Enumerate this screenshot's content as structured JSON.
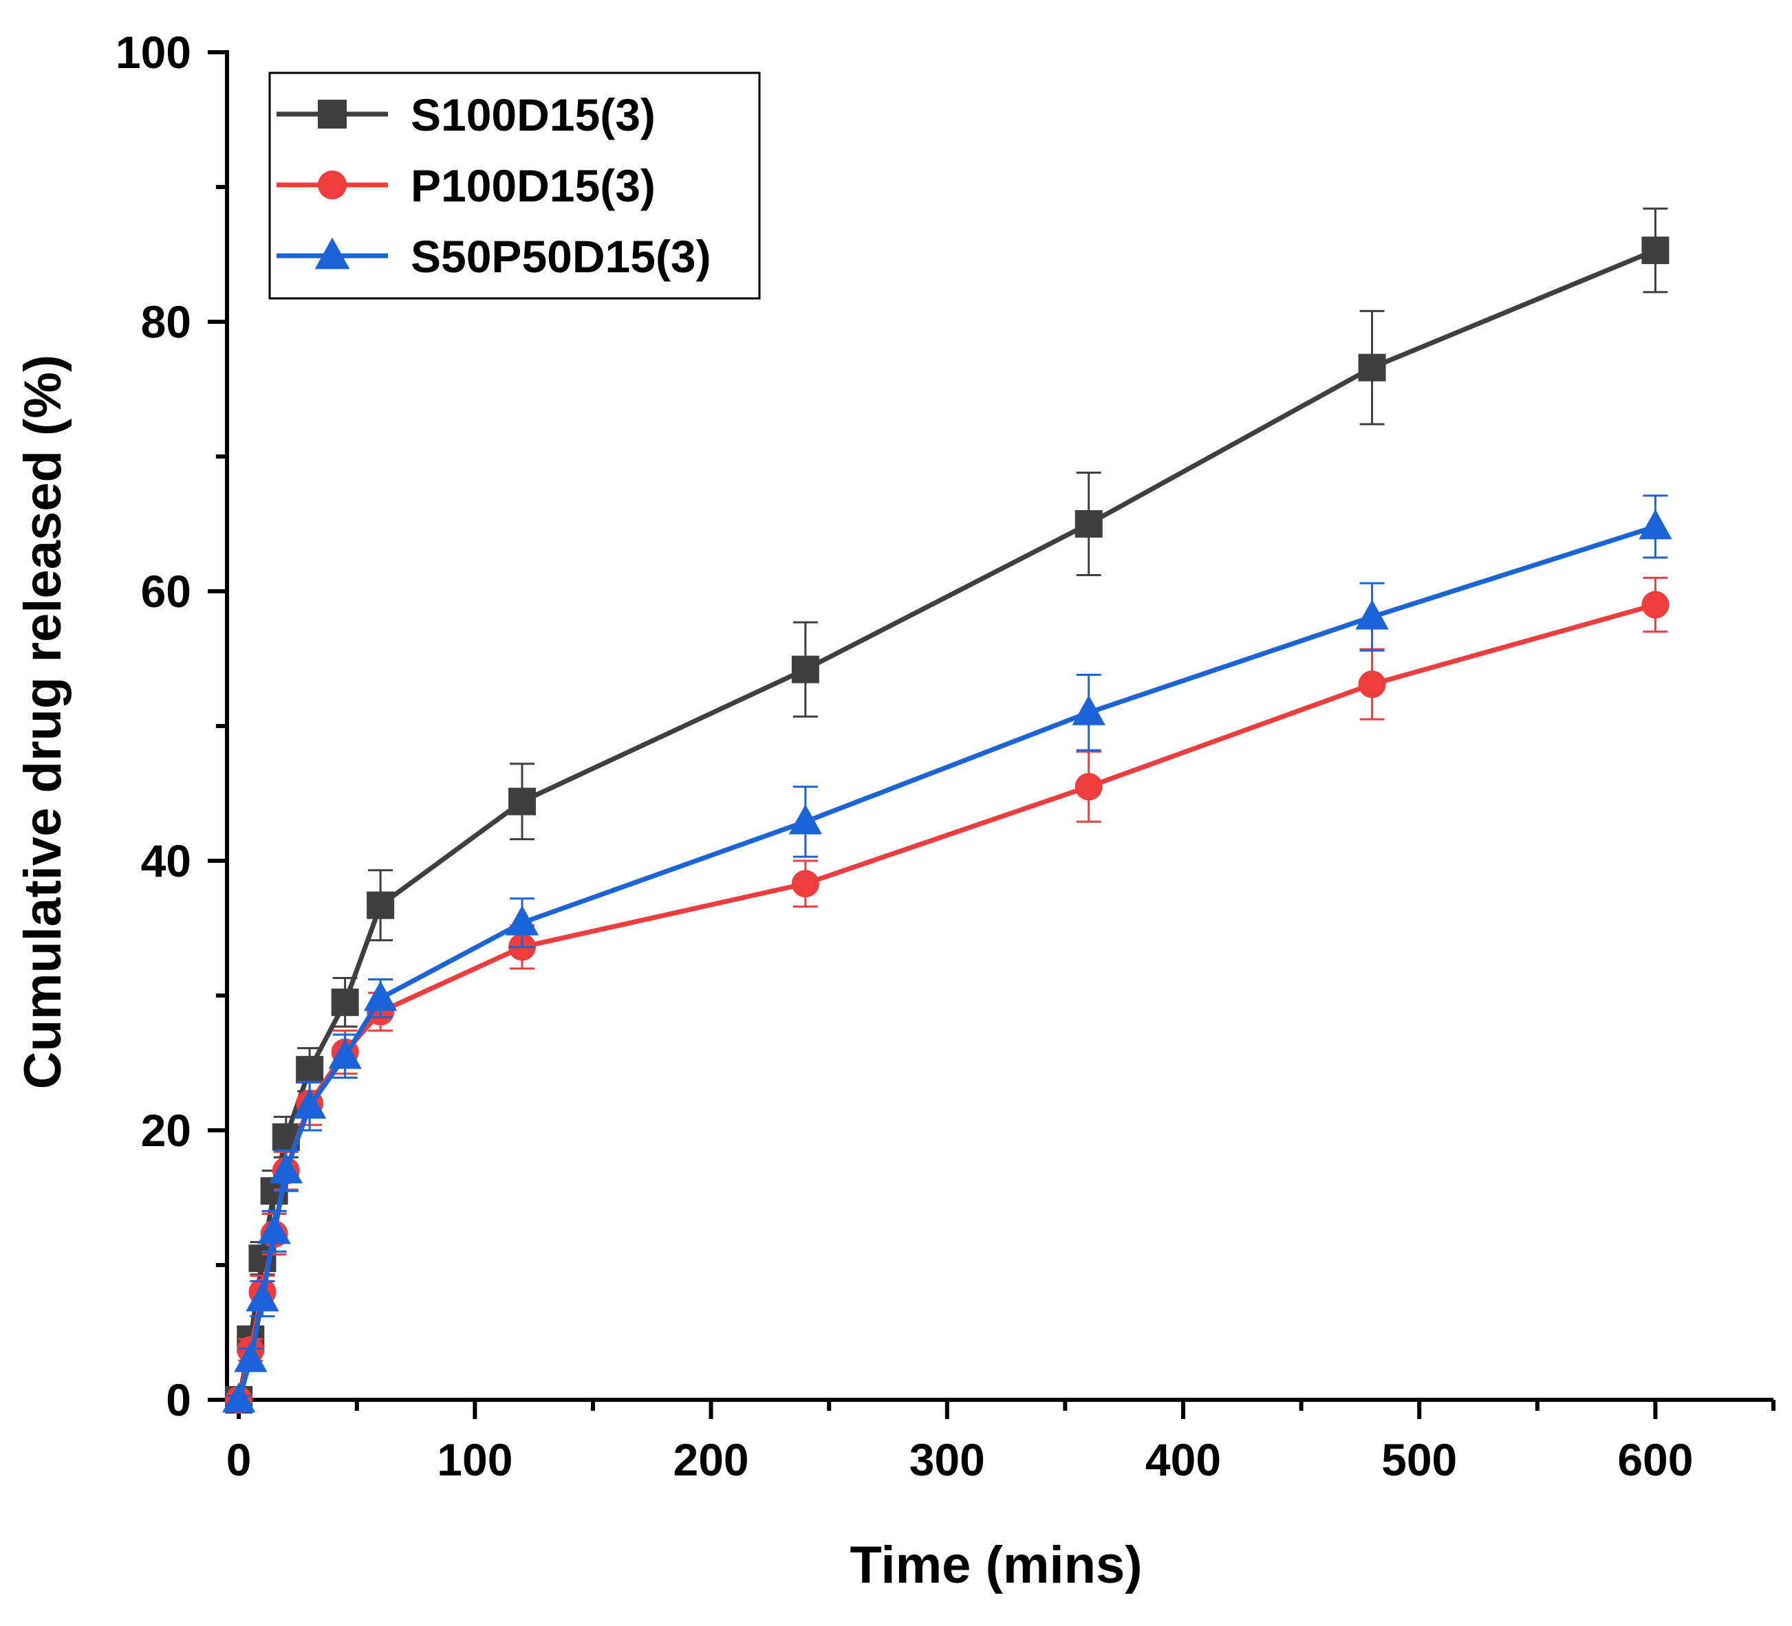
{
  "chart_data": {
    "type": "line",
    "title": "",
    "xlabel": "Time (mins)",
    "ylabel": "Cumulative drug released (%)",
    "xlim": [
      -5,
      650
    ],
    "ylim": [
      0,
      100
    ],
    "x_major_ticks": [
      0,
      100,
      200,
      300,
      400,
      500,
      600
    ],
    "x_tick_labels": [
      "0",
      "100",
      "200",
      "300",
      "400",
      "500",
      "600"
    ],
    "x_minor_ticks": [
      50,
      150,
      250,
      350,
      450,
      550,
      650
    ],
    "y_major_ticks": [
      0,
      20,
      40,
      60,
      80,
      100
    ],
    "y_tick_labels": [
      "0",
      "20",
      "40",
      "60",
      "80",
      "100"
    ],
    "y_minor_ticks": [
      10,
      30,
      50,
      70,
      90
    ],
    "grid": false,
    "legend_position": "top-left",
    "x": [
      0,
      5,
      10,
      15,
      20,
      30,
      45,
      60,
      120,
      240,
      360,
      480,
      600
    ],
    "series": [
      {
        "name": "S100D15(3)",
        "color": "#3f3f3f",
        "marker": "square",
        "values": [
          0,
          4.5,
          10.5,
          15.5,
          19.5,
          24.5,
          29.5,
          36.7,
          44.4,
          54.2,
          65.0,
          76.6,
          85.3
        ],
        "errors": [
          0.3,
          0.8,
          1.2,
          1.5,
          1.5,
          1.6,
          1.8,
          2.6,
          2.8,
          3.5,
          3.8,
          4.2,
          3.1
        ]
      },
      {
        "name": "P100D15(3)",
        "color": "#f03c3c",
        "marker": "circle",
        "values": [
          0,
          3.7,
          8.0,
          12.3,
          17.0,
          22.0,
          25.8,
          28.8,
          33.6,
          38.3,
          45.5,
          53.1,
          59.0
        ],
        "errors": [
          0.3,
          0.8,
          1.2,
          1.5,
          1.4,
          1.6,
          1.6,
          1.4,
          1.6,
          1.7,
          2.6,
          2.6,
          2.0
        ]
      },
      {
        "name": "S50P50D15(3)",
        "color": "#1a63d8",
        "marker": "triangle",
        "values": [
          0,
          3.0,
          7.5,
          12.5,
          17.0,
          21.8,
          25.5,
          29.8,
          35.4,
          42.9,
          51.0,
          58.1,
          64.8
        ],
        "errors": [
          0.3,
          0.8,
          1.3,
          1.5,
          1.5,
          1.8,
          1.6,
          1.4,
          1.8,
          2.6,
          2.8,
          2.5,
          2.3
        ]
      }
    ]
  }
}
